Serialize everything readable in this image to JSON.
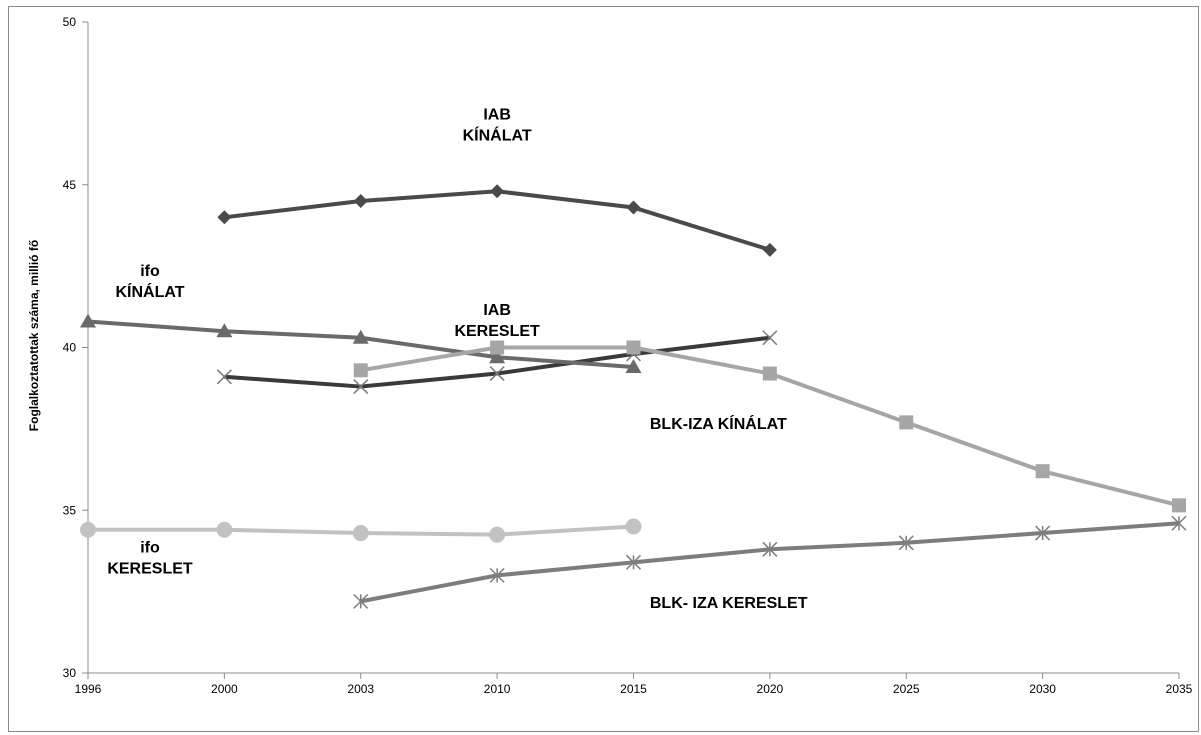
{
  "chart_data": {
    "type": "line",
    "title": "",
    "xlabel": "",
    "ylabel": "Foglalkoztatottak száma, millió fő",
    "categories": [
      "1996",
      "2000",
      "2003",
      "2010",
      "2015",
      "2020",
      "2025",
      "2030",
      "2035"
    ],
    "ylim": [
      30,
      50
    ],
    "yticks": [
      30,
      35,
      40,
      45,
      50
    ],
    "grid": false,
    "legend": "none",
    "series": [
      {
        "name": "IAB KÍNÁLAT",
        "marker": "diamond",
        "color": "#4a4a4a",
        "values": [
          null,
          44.0,
          44.5,
          44.8,
          44.3,
          43.0,
          null,
          null,
          null
        ]
      },
      {
        "name": "IAB KERESLET",
        "marker": "x",
        "color": "#3a3a3a",
        "values": [
          null,
          39.1,
          38.8,
          39.2,
          39.8,
          40.3,
          null,
          null,
          null
        ]
      },
      {
        "name": "ifo KÍNÁLAT",
        "marker": "triangle",
        "color": "#6a6a6a",
        "values": [
          40.8,
          40.5,
          40.3,
          39.7,
          39.4,
          null,
          null,
          null,
          null
        ]
      },
      {
        "name": "ifo KERESLET",
        "marker": "circle",
        "color": "#c2c2c2",
        "values": [
          34.4,
          34.4,
          34.3,
          34.25,
          34.5,
          null,
          null,
          null,
          null
        ]
      },
      {
        "name": "BLK-IZA KÍNÁLAT",
        "marker": "square",
        "color": "#a6a6a6",
        "values": [
          null,
          null,
          39.3,
          40.0,
          40.0,
          39.2,
          37.7,
          36.2,
          35.15
        ]
      },
      {
        "name": "BLK- IZA KERESLET",
        "marker": "star",
        "color": "#7d7d7d",
        "values": [
          null,
          null,
          32.2,
          33.0,
          33.4,
          33.8,
          34.0,
          34.3,
          34.6
        ]
      }
    ],
    "annotations": [
      {
        "lines": [
          "IAB",
          "KÍNÁLAT"
        ],
        "x": "2010",
        "y": 47.0
      },
      {
        "lines": [
          "IAB",
          "KERESLET"
        ],
        "x": "2010",
        "y": 41.0
      },
      {
        "lines": [
          "ifo",
          "KÍNÁLAT"
        ],
        "x": "1996",
        "y": 42.2
      },
      {
        "lines": [
          "ifo",
          "KERESLET"
        ],
        "x": "1996",
        "y": 33.7
      },
      {
        "lines": [
          "BLK-IZA KÍNÁLAT"
        ],
        "x": "2020",
        "y": 37.5
      },
      {
        "lines": [
          "BLK- IZA KERESLET"
        ],
        "x": "2020",
        "y": 32.0
      }
    ]
  }
}
